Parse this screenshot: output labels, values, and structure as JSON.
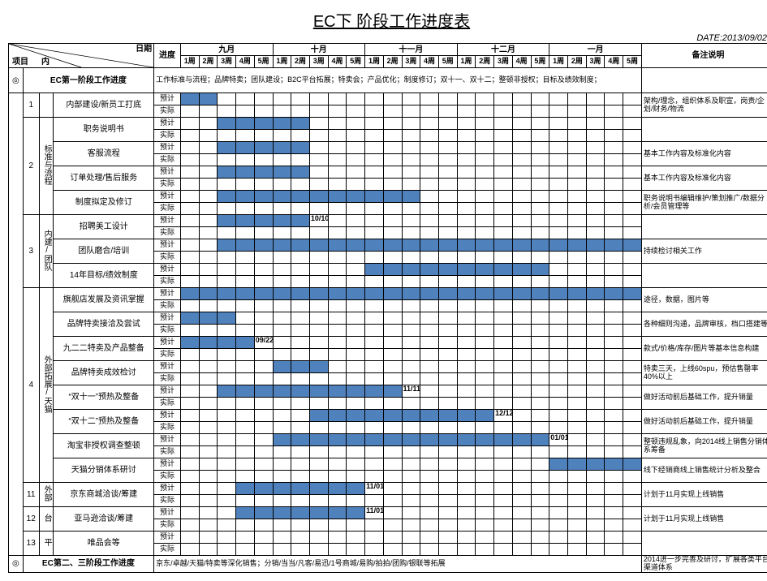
{
  "title": "EC下 阶段工作进度表",
  "date_label": "DATE:2013/09/02",
  "colors": {
    "bar": "#4f81bd",
    "border": "#000000",
    "background": "#ffffff"
  },
  "header": {
    "diag_top": "日期",
    "diag_side": "项目",
    "diag_bottom": "内",
    "progress_col": "进度",
    "remarks_col": "备注说明",
    "months": [
      "九月",
      "十月",
      "十一月",
      "十二月",
      "一月"
    ],
    "weeks": [
      "1周",
      "2周",
      "3周",
      "4周",
      "5周"
    ]
  },
  "rowtypes": {
    "plan": "预计",
    "actual": "实际"
  },
  "milestones": {
    "m1010": "10/10",
    "m0922": "09/22",
    "m1111": "11/11",
    "m1212": "12/12",
    "m0101": "01/01",
    "m1101": "11/01"
  },
  "phase1": {
    "marker": "◎",
    "label": "EC第一阶段工作进度",
    "desc": "工作标准与流程；品牌特卖；团队建设；B2C平台拓展；特卖会；产品优化；制度修订；双十一、双十二；整顿非授权；目标及绩效制度；"
  },
  "phase2": {
    "marker": "◎",
    "label": "EC第二、三阶段工作进度",
    "desc": "京东/卓越/天猫/特卖等深化销售；分销/当当/凡客/易迅/1号商城/易购/拍拍/团购/银联等拓展",
    "remark": "2014进一步完善及研讨，扩展各类平台渠道体系"
  },
  "rows": [
    {
      "num": "1",
      "cat": "",
      "task": "内部建设/新员工打底",
      "plan": [
        1,
        2
      ],
      "actual": [],
      "remark": "架构/理念，组织体系及职宣，岗责/企划/财务/物流"
    },
    {
      "num": "2",
      "cat": "标准与流程",
      "tasks": [
        {
          "task": "职务说明书",
          "plan": [
            3,
            4,
            5,
            6,
            7
          ],
          "actual": [],
          "remark": ""
        },
        {
          "task": "客服流程",
          "plan": [
            3,
            4,
            5,
            6,
            7
          ],
          "actual": [],
          "remark": "基本工作内容及标准化内容"
        },
        {
          "task": "订单处理/售后服务",
          "plan": [
            3,
            4,
            5,
            6,
            7
          ],
          "actual": [],
          "remark": "基本工作内容及标准化内容"
        },
        {
          "task": "制度拟定及修订",
          "plan": [
            3,
            4,
            5,
            6,
            7,
            8,
            9,
            10,
            11,
            12,
            13
          ],
          "actual": [],
          "remark": "职务说明书编辑维护/策划推广/数据分析/会员管理等"
        }
      ]
    },
    {
      "num": "3",
      "cat": "内建/团队",
      "tasks": [
        {
          "task": "招聘美工设计",
          "plan": [
            3,
            4,
            5,
            6,
            7
          ],
          "actual": [],
          "remark": "",
          "label_at": 8,
          "label": "m1010"
        },
        {
          "task": "团队磨合/培训",
          "plan": [
            3,
            4,
            5,
            6,
            7,
            8,
            9,
            10,
            11,
            12,
            13,
            14,
            15,
            16,
            17,
            18,
            19,
            20,
            21,
            22,
            23,
            24,
            25
          ],
          "actual": [],
          "remark": "持续检讨相关工作"
        },
        {
          "task": "14年目标/绩效制度",
          "plan": [
            11,
            12,
            13,
            14,
            15,
            16,
            17,
            18,
            19,
            20
          ],
          "actual": [],
          "remark": ""
        }
      ]
    },
    {
      "num": "4",
      "cat": "外部拓展/天猫",
      "tasks": [
        {
          "task": "旗舰店发展及资讯掌握",
          "plan": [
            1,
            2,
            3,
            4,
            5,
            6,
            7,
            8,
            9,
            10,
            11,
            12,
            13,
            14,
            15,
            16,
            17,
            18,
            19,
            20,
            21,
            22,
            23,
            24,
            25
          ],
          "actual": [],
          "remark": "途径，数据，图片等"
        },
        {
          "task": "品牌特卖接洽及尝试",
          "plan": [
            1,
            2,
            3
          ],
          "actual": [],
          "remark": "各种细则沟通，品牌审核，档口搭建等"
        },
        {
          "task": "九二二特卖及产品整备",
          "plan": [
            1,
            2,
            3,
            4
          ],
          "actual": [],
          "remark": "款式/价格/库存/图片等基本信息构建",
          "label_at": 5,
          "label": "m0922"
        },
        {
          "task": "品牌特卖成效检讨",
          "plan": [
            6,
            7,
            8
          ],
          "actual": [],
          "remark": "特卖三天，上线60spu，预估售罄率40%以上"
        },
        {
          "task": "“双十一”预热及整备",
          "plan": [
            3,
            4,
            5,
            6,
            7,
            8,
            9,
            10,
            11,
            12
          ],
          "actual": [],
          "remark": "做好活动前后基础工作，提升销量",
          "label_at": 13,
          "label": "m1111"
        },
        {
          "task": "“双十二”预热及整备",
          "plan": [
            8,
            9,
            10,
            11,
            12,
            13,
            14,
            15,
            16,
            17
          ],
          "actual": [],
          "remark": "做好活动前后基础工作，提升销量",
          "label_at": 18,
          "label": "m1212"
        },
        {
          "task": "淘宝非授权调查整顿",
          "plan": [
            6,
            7,
            8,
            9,
            10,
            11,
            12,
            13,
            14,
            15,
            16,
            17,
            18,
            19,
            20
          ],
          "actual": [],
          "remark": "整顿违规乱象，向2014线上销售分销体系筹备",
          "label_at": 21,
          "label": "m0101"
        },
        {
          "task": "天猫分销体系研讨",
          "plan": [
            21,
            22,
            23,
            24,
            25
          ],
          "actual": [],
          "remark": "线下经销商线上销售统计分析及整合"
        }
      ]
    },
    {
      "num": "11",
      "cat": "外部",
      "task": "京东商城洽谈/筹建",
      "plan": [
        4,
        5,
        6,
        7,
        8,
        9,
        10
      ],
      "actual": [],
      "remark": "计划于11月实现上线销售",
      "label_at": 11,
      "label": "m1101"
    },
    {
      "num": "12",
      "cat": "台",
      "task": "亚马逊洽谈/筹建",
      "plan": [
        4,
        5,
        6,
        7,
        8,
        9,
        10
      ],
      "actual": [],
      "remark": "计划于11月实现上线销售",
      "label_at": 11,
      "label": "m1101"
    },
    {
      "num": "13",
      "cat": "平",
      "task": "唯品会等",
      "plan": [],
      "actual": [],
      "remark": ""
    }
  ]
}
